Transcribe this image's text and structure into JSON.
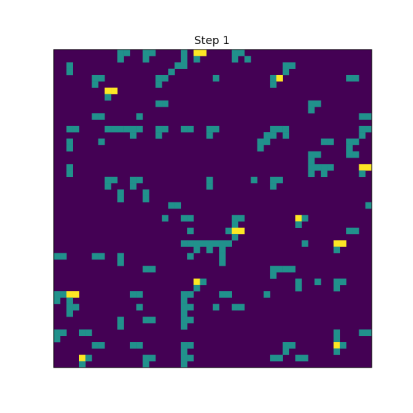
{
  "chart_data": {
    "type": "heatmap",
    "title": "Step 1",
    "xlabel": "",
    "ylabel": "",
    "grid": false,
    "rows": 50,
    "cols": 50,
    "value_levels": [
      0,
      1,
      2
    ],
    "colors": {
      "0": "#440154",
      "1": "#21918c",
      "2": "#fde725"
    },
    "nonzero_cells": [
      {
        "r": 0,
        "c": 10,
        "v": 1
      },
      {
        "r": 0,
        "c": 11,
        "v": 1
      },
      {
        "r": 0,
        "c": 14,
        "v": 1
      },
      {
        "r": 0,
        "c": 15,
        "v": 1
      },
      {
        "r": 0,
        "c": 20,
        "v": 1
      },
      {
        "r": 0,
        "c": 22,
        "v": 2
      },
      {
        "r": 0,
        "c": 23,
        "v": 2
      },
      {
        "r": 0,
        "c": 28,
        "v": 1
      },
      {
        "r": 0,
        "c": 29,
        "v": 1
      },
      {
        "r": 1,
        "c": 10,
        "v": 1
      },
      {
        "r": 1,
        "c": 14,
        "v": 1
      },
      {
        "r": 1,
        "c": 20,
        "v": 1
      },
      {
        "r": 1,
        "c": 22,
        "v": 1
      },
      {
        "r": 1,
        "c": 28,
        "v": 1
      },
      {
        "r": 1,
        "c": 30,
        "v": 1
      },
      {
        "r": 2,
        "c": 2,
        "v": 1
      },
      {
        "r": 2,
        "c": 19,
        "v": 1
      },
      {
        "r": 2,
        "c": 20,
        "v": 1
      },
      {
        "r": 2,
        "c": 36,
        "v": 1
      },
      {
        "r": 2,
        "c": 37,
        "v": 1
      },
      {
        "r": 3,
        "c": 2,
        "v": 1
      },
      {
        "r": 3,
        "c": 18,
        "v": 1
      },
      {
        "r": 3,
        "c": 36,
        "v": 1
      },
      {
        "r": 4,
        "c": 6,
        "v": 1
      },
      {
        "r": 4,
        "c": 7,
        "v": 1
      },
      {
        "r": 4,
        "c": 16,
        "v": 1
      },
      {
        "r": 4,
        "c": 17,
        "v": 1
      },
      {
        "r": 4,
        "c": 25,
        "v": 1
      },
      {
        "r": 4,
        "c": 34,
        "v": 1
      },
      {
        "r": 4,
        "c": 35,
        "v": 2
      },
      {
        "r": 4,
        "c": 46,
        "v": 1
      },
      {
        "r": 4,
        "c": 47,
        "v": 1
      },
      {
        "r": 5,
        "c": 6,
        "v": 1
      },
      {
        "r": 5,
        "c": 16,
        "v": 1
      },
      {
        "r": 5,
        "c": 34,
        "v": 1
      },
      {
        "r": 6,
        "c": 8,
        "v": 2
      },
      {
        "r": 6,
        "c": 9,
        "v": 2
      },
      {
        "r": 7,
        "c": 8,
        "v": 1
      },
      {
        "r": 8,
        "c": 16,
        "v": 1
      },
      {
        "r": 8,
        "c": 17,
        "v": 1
      },
      {
        "r": 8,
        "c": 40,
        "v": 1
      },
      {
        "r": 8,
        "c": 41,
        "v": 1
      },
      {
        "r": 9,
        "c": 40,
        "v": 1
      },
      {
        "r": 10,
        "c": 6,
        "v": 1
      },
      {
        "r": 10,
        "c": 7,
        "v": 1
      },
      {
        "r": 10,
        "c": 13,
        "v": 1
      },
      {
        "r": 10,
        "c": 48,
        "v": 1
      },
      {
        "r": 10,
        "c": 49,
        "v": 1
      },
      {
        "r": 12,
        "c": 2,
        "v": 1
      },
      {
        "r": 12,
        "c": 3,
        "v": 1
      },
      {
        "r": 12,
        "c": 8,
        "v": 1
      },
      {
        "r": 12,
        "c": 9,
        "v": 1
      },
      {
        "r": 12,
        "c": 10,
        "v": 1
      },
      {
        "r": 12,
        "c": 11,
        "v": 1
      },
      {
        "r": 12,
        "c": 12,
        "v": 1
      },
      {
        "r": 12,
        "c": 13,
        "v": 1
      },
      {
        "r": 12,
        "c": 16,
        "v": 1
      },
      {
        "r": 12,
        "c": 17,
        "v": 1
      },
      {
        "r": 12,
        "c": 20,
        "v": 1
      },
      {
        "r": 12,
        "c": 21,
        "v": 1
      },
      {
        "r": 12,
        "c": 24,
        "v": 1
      },
      {
        "r": 12,
        "c": 25,
        "v": 1
      },
      {
        "r": 12,
        "c": 34,
        "v": 1
      },
      {
        "r": 12,
        "c": 35,
        "v": 1
      },
      {
        "r": 12,
        "c": 36,
        "v": 1
      },
      {
        "r": 12,
        "c": 48,
        "v": 1
      },
      {
        "r": 12,
        "c": 49,
        "v": 1
      },
      {
        "r": 13,
        "c": 12,
        "v": 1
      },
      {
        "r": 13,
        "c": 16,
        "v": 1
      },
      {
        "r": 13,
        "c": 24,
        "v": 1
      },
      {
        "r": 13,
        "c": 33,
        "v": 1
      },
      {
        "r": 13,
        "c": 34,
        "v": 1
      },
      {
        "r": 13,
        "c": 36,
        "v": 1
      },
      {
        "r": 13,
        "c": 48,
        "v": 1
      },
      {
        "r": 14,
        "c": 2,
        "v": 1
      },
      {
        "r": 14,
        "c": 7,
        "v": 1
      },
      {
        "r": 14,
        "c": 32,
        "v": 1
      },
      {
        "r": 14,
        "c": 33,
        "v": 1
      },
      {
        "r": 14,
        "c": 42,
        "v": 1
      },
      {
        "r": 14,
        "c": 43,
        "v": 1
      },
      {
        "r": 14,
        "c": 46,
        "v": 1
      },
      {
        "r": 14,
        "c": 47,
        "v": 1
      },
      {
        "r": 15,
        "c": 2,
        "v": 1
      },
      {
        "r": 15,
        "c": 32,
        "v": 1
      },
      {
        "r": 15,
        "c": 46,
        "v": 1
      },
      {
        "r": 16,
        "c": 40,
        "v": 1
      },
      {
        "r": 16,
        "c": 41,
        "v": 1
      },
      {
        "r": 16,
        "c": 46,
        "v": 1
      },
      {
        "r": 16,
        "c": 47,
        "v": 1
      },
      {
        "r": 17,
        "c": 40,
        "v": 1
      },
      {
        "r": 18,
        "c": 2,
        "v": 1
      },
      {
        "r": 18,
        "c": 40,
        "v": 1
      },
      {
        "r": 18,
        "c": 41,
        "v": 1
      },
      {
        "r": 18,
        "c": 42,
        "v": 1
      },
      {
        "r": 18,
        "c": 43,
        "v": 1
      },
      {
        "r": 18,
        "c": 48,
        "v": 2
      },
      {
        "r": 18,
        "c": 49,
        "v": 2
      },
      {
        "r": 19,
        "c": 2,
        "v": 1
      },
      {
        "r": 19,
        "c": 40,
        "v": 1
      },
      {
        "r": 19,
        "c": 42,
        "v": 1
      },
      {
        "r": 19,
        "c": 48,
        "v": 1
      },
      {
        "r": 20,
        "c": 8,
        "v": 1
      },
      {
        "r": 20,
        "c": 9,
        "v": 1
      },
      {
        "r": 20,
        "c": 12,
        "v": 1
      },
      {
        "r": 20,
        "c": 13,
        "v": 1
      },
      {
        "r": 20,
        "c": 24,
        "v": 1
      },
      {
        "r": 20,
        "c": 31,
        "v": 1
      },
      {
        "r": 20,
        "c": 34,
        "v": 1
      },
      {
        "r": 20,
        "c": 35,
        "v": 1
      },
      {
        "r": 21,
        "c": 8,
        "v": 1
      },
      {
        "r": 21,
        "c": 12,
        "v": 1
      },
      {
        "r": 21,
        "c": 24,
        "v": 1
      },
      {
        "r": 21,
        "c": 34,
        "v": 1
      },
      {
        "r": 22,
        "c": 10,
        "v": 1
      },
      {
        "r": 22,
        "c": 14,
        "v": 1
      },
      {
        "r": 23,
        "c": 10,
        "v": 1
      },
      {
        "r": 23,
        "c": 14,
        "v": 1
      },
      {
        "r": 24,
        "c": 18,
        "v": 1
      },
      {
        "r": 24,
        "c": 19,
        "v": 1
      },
      {
        "r": 24,
        "c": 49,
        "v": 1
      },
      {
        "r": 26,
        "c": 17,
        "v": 1
      },
      {
        "r": 26,
        "c": 20,
        "v": 1
      },
      {
        "r": 26,
        "c": 21,
        "v": 1
      },
      {
        "r": 26,
        "c": 28,
        "v": 1
      },
      {
        "r": 26,
        "c": 29,
        "v": 1
      },
      {
        "r": 26,
        "c": 38,
        "v": 2
      },
      {
        "r": 26,
        "c": 39,
        "v": 1
      },
      {
        "r": 27,
        "c": 28,
        "v": 1
      },
      {
        "r": 27,
        "c": 38,
        "v": 1
      },
      {
        "r": 28,
        "c": 21,
        "v": 1
      },
      {
        "r": 28,
        "c": 27,
        "v": 1
      },
      {
        "r": 28,
        "c": 28,
        "v": 2
      },
      {
        "r": 28,
        "c": 29,
        "v": 2
      },
      {
        "r": 28,
        "c": 46,
        "v": 1
      },
      {
        "r": 28,
        "c": 47,
        "v": 1
      },
      {
        "r": 29,
        "c": 28,
        "v": 1
      },
      {
        "r": 30,
        "c": 20,
        "v": 1
      },
      {
        "r": 30,
        "c": 21,
        "v": 1
      },
      {
        "r": 30,
        "c": 22,
        "v": 1
      },
      {
        "r": 30,
        "c": 23,
        "v": 1
      },
      {
        "r": 30,
        "c": 24,
        "v": 1
      },
      {
        "r": 30,
        "c": 25,
        "v": 1
      },
      {
        "r": 30,
        "c": 26,
        "v": 1
      },
      {
        "r": 30,
        "c": 27,
        "v": 1
      },
      {
        "r": 30,
        "c": 39,
        "v": 1
      },
      {
        "r": 30,
        "c": 44,
        "v": 2
      },
      {
        "r": 30,
        "c": 45,
        "v": 2
      },
      {
        "r": 31,
        "c": 22,
        "v": 1
      },
      {
        "r": 31,
        "c": 24,
        "v": 1
      },
      {
        "r": 31,
        "c": 26,
        "v": 1
      },
      {
        "r": 31,
        "c": 44,
        "v": 1
      },
      {
        "r": 32,
        "c": 0,
        "v": 1
      },
      {
        "r": 32,
        "c": 1,
        "v": 1
      },
      {
        "r": 32,
        "c": 6,
        "v": 1
      },
      {
        "r": 32,
        "c": 7,
        "v": 1
      },
      {
        "r": 32,
        "c": 10,
        "v": 1
      },
      {
        "r": 32,
        "c": 21,
        "v": 1
      },
      {
        "r": 32,
        "c": 26,
        "v": 1
      },
      {
        "r": 33,
        "c": 10,
        "v": 1
      },
      {
        "r": 33,
        "c": 26,
        "v": 1
      },
      {
        "r": 34,
        "c": 14,
        "v": 1
      },
      {
        "r": 34,
        "c": 15,
        "v": 1
      },
      {
        "r": 34,
        "c": 34,
        "v": 1
      },
      {
        "r": 34,
        "c": 35,
        "v": 1
      },
      {
        "r": 34,
        "c": 36,
        "v": 1
      },
      {
        "r": 34,
        "c": 37,
        "v": 1
      },
      {
        "r": 35,
        "c": 34,
        "v": 1
      },
      {
        "r": 36,
        "c": 22,
        "v": 2
      },
      {
        "r": 36,
        "c": 23,
        "v": 1
      },
      {
        "r": 36,
        "c": 38,
        "v": 1
      },
      {
        "r": 36,
        "c": 41,
        "v": 1
      },
      {
        "r": 36,
        "c": 44,
        "v": 1
      },
      {
        "r": 36,
        "c": 45,
        "v": 1
      },
      {
        "r": 37,
        "c": 22,
        "v": 1
      },
      {
        "r": 37,
        "c": 38,
        "v": 1
      },
      {
        "r": 37,
        "c": 44,
        "v": 1
      },
      {
        "r": 38,
        "c": 0,
        "v": 1
      },
      {
        "r": 38,
        "c": 1,
        "v": 1
      },
      {
        "r": 38,
        "c": 2,
        "v": 2
      },
      {
        "r": 38,
        "c": 3,
        "v": 2
      },
      {
        "r": 38,
        "c": 12,
        "v": 1
      },
      {
        "r": 38,
        "c": 13,
        "v": 1
      },
      {
        "r": 38,
        "c": 20,
        "v": 1
      },
      {
        "r": 38,
        "c": 21,
        "v": 1
      },
      {
        "r": 38,
        "c": 26,
        "v": 1
      },
      {
        "r": 38,
        "c": 27,
        "v": 1
      },
      {
        "r": 38,
        "c": 33,
        "v": 1
      },
      {
        "r": 39,
        "c": 0,
        "v": 1
      },
      {
        "r": 39,
        "c": 2,
        "v": 1
      },
      {
        "r": 39,
        "c": 20,
        "v": 1
      },
      {
        "r": 40,
        "c": 2,
        "v": 1
      },
      {
        "r": 40,
        "c": 3,
        "v": 1
      },
      {
        "r": 40,
        "c": 13,
        "v": 1
      },
      {
        "r": 40,
        "c": 20,
        "v": 1
      },
      {
        "r": 40,
        "c": 21,
        "v": 1
      },
      {
        "r": 40,
        "c": 25,
        "v": 1
      },
      {
        "r": 40,
        "c": 28,
        "v": 1
      },
      {
        "r": 40,
        "c": 29,
        "v": 1
      },
      {
        "r": 41,
        "c": 2,
        "v": 1
      },
      {
        "r": 41,
        "c": 20,
        "v": 1
      },
      {
        "r": 42,
        "c": 10,
        "v": 1
      },
      {
        "r": 42,
        "c": 14,
        "v": 1
      },
      {
        "r": 42,
        "c": 15,
        "v": 1
      },
      {
        "r": 42,
        "c": 20,
        "v": 1
      },
      {
        "r": 42,
        "c": 21,
        "v": 1
      },
      {
        "r": 43,
        "c": 10,
        "v": 1
      },
      {
        "r": 43,
        "c": 20,
        "v": 1
      },
      {
        "r": 44,
        "c": 0,
        "v": 1
      },
      {
        "r": 44,
        "c": 1,
        "v": 1
      },
      {
        "r": 44,
        "c": 4,
        "v": 1
      },
      {
        "r": 44,
        "c": 5,
        "v": 1
      },
      {
        "r": 44,
        "c": 44,
        "v": 1
      },
      {
        "r": 44,
        "c": 48,
        "v": 1
      },
      {
        "r": 44,
        "c": 49,
        "v": 1
      },
      {
        "r": 45,
        "c": 0,
        "v": 1
      },
      {
        "r": 45,
        "c": 44,
        "v": 1
      },
      {
        "r": 46,
        "c": 6,
        "v": 1
      },
      {
        "r": 46,
        "c": 7,
        "v": 1
      },
      {
        "r": 46,
        "c": 12,
        "v": 1
      },
      {
        "r": 46,
        "c": 13,
        "v": 1
      },
      {
        "r": 46,
        "c": 20,
        "v": 1
      },
      {
        "r": 46,
        "c": 21,
        "v": 1
      },
      {
        "r": 46,
        "c": 36,
        "v": 1
      },
      {
        "r": 46,
        "c": 37,
        "v": 1
      },
      {
        "r": 46,
        "c": 44,
        "v": 2
      },
      {
        "r": 46,
        "c": 45,
        "v": 1
      },
      {
        "r": 47,
        "c": 20,
        "v": 1
      },
      {
        "r": 47,
        "c": 36,
        "v": 1
      },
      {
        "r": 47,
        "c": 44,
        "v": 1
      },
      {
        "r": 48,
        "c": 4,
        "v": 2
      },
      {
        "r": 48,
        "c": 5,
        "v": 1
      },
      {
        "r": 48,
        "c": 14,
        "v": 1
      },
      {
        "r": 48,
        "c": 15,
        "v": 1
      },
      {
        "r": 48,
        "c": 20,
        "v": 1
      },
      {
        "r": 48,
        "c": 21,
        "v": 1
      },
      {
        "r": 48,
        "c": 34,
        "v": 1
      },
      {
        "r": 48,
        "c": 35,
        "v": 1
      },
      {
        "r": 48,
        "c": 38,
        "v": 1
      },
      {
        "r": 48,
        "c": 39,
        "v": 1
      },
      {
        "r": 49,
        "c": 4,
        "v": 1
      },
      {
        "r": 49,
        "c": 14,
        "v": 1
      },
      {
        "r": 49,
        "c": 20,
        "v": 1
      }
    ]
  }
}
